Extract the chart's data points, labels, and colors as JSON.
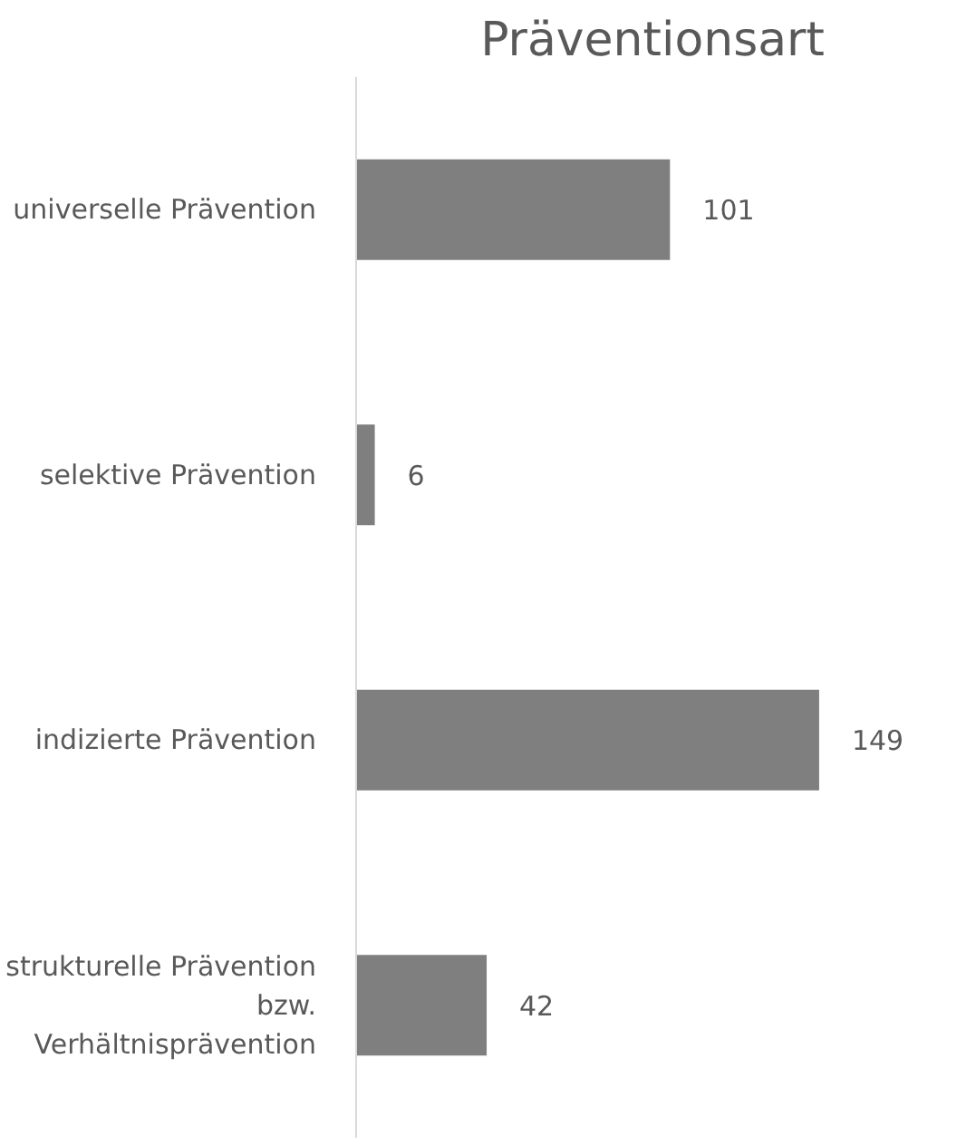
{
  "chart_data": {
    "type": "bar",
    "orientation": "horizontal",
    "title": "Präventionsart",
    "categories": [
      "universelle Prävention",
      "selektive Prävention",
      "indizierte Prävention",
      "strukturelle Prävention\nbzw.\nVerhältnisprävention"
    ],
    "values": [
      101,
      6,
      149,
      42
    ],
    "color": "#7f7f7f",
    "data_labels": true,
    "grid": false
  }
}
